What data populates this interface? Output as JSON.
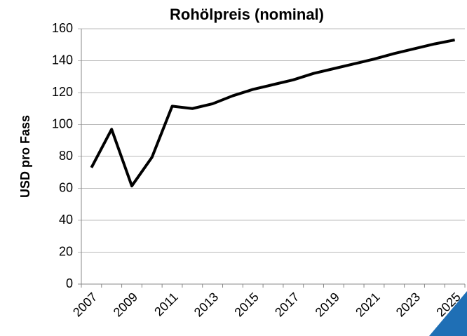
{
  "chart_data": {
    "type": "line",
    "title": "Rohölpreis (nominal)",
    "y_label": "USD pro Fass",
    "categories": [
      "2007",
      null,
      "2009",
      null,
      "2011",
      null,
      "2013",
      null,
      "2015",
      null,
      "2017",
      null,
      "2019",
      null,
      "2021",
      null,
      "2023",
      null,
      "2025"
    ],
    "series": [
      {
        "name": "Rohölpreis",
        "color": "#000000",
        "values": [
          73,
          97,
          61.5,
          79.5,
          111.5,
          110,
          113,
          118,
          122,
          125,
          128,
          132,
          135,
          138,
          141,
          144.5,
          147.5,
          150.5,
          153
        ]
      }
    ],
    "ylim": [
      0,
      160
    ],
    "yticks": [
      0,
      20,
      40,
      60,
      80,
      100,
      120,
      140,
      160
    ],
    "grid": true
  }
}
